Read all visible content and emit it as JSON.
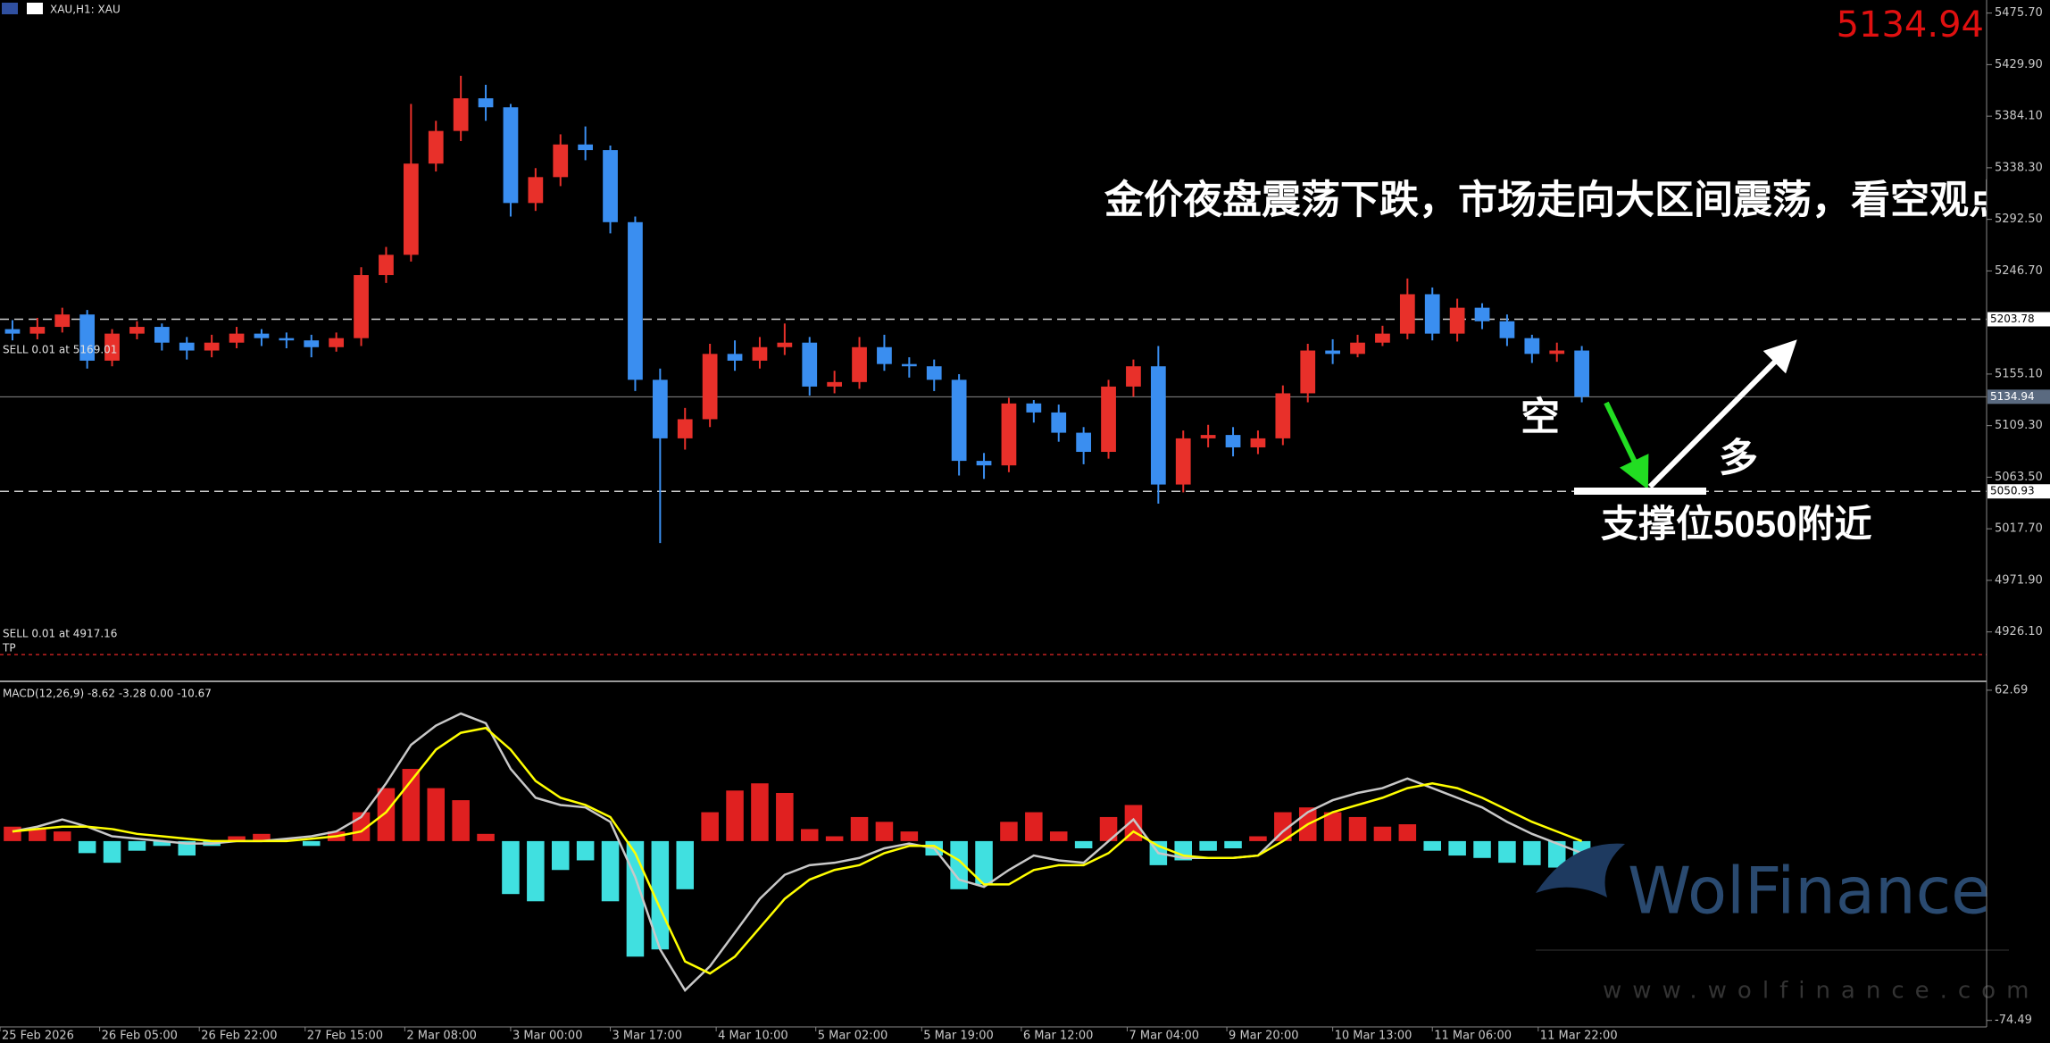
{
  "chart_data": [
    {
      "type": "candlestick",
      "title": "XAU,H1: XAU",
      "x": [
        2,
        6,
        10,
        14,
        18,
        22,
        26,
        30,
        34,
        38,
        42,
        46,
        50,
        54,
        58,
        62,
        66,
        70,
        74,
        78,
        82,
        86,
        90,
        94,
        98,
        102,
        106,
        110,
        114,
        118,
        122,
        126,
        130,
        134,
        138,
        142,
        146,
        150,
        154,
        158,
        162,
        166,
        170,
        174,
        178,
        182,
        186,
        190,
        194,
        198,
        202,
        206,
        210,
        214,
        218,
        222,
        226,
        230,
        234,
        238,
        242,
        246,
        250,
        254
      ],
      "open": [
        5195,
        5191,
        5197,
        5208,
        5167,
        5191,
        5197,
        5183,
        5176,
        5183,
        5191,
        5187,
        5185,
        5179,
        5187,
        5243,
        5261,
        5342,
        5371,
        5400,
        5392,
        5307,
        5330,
        5359,
        5354,
        5290,
        5150,
        5098,
        5115,
        5173,
        5167,
        5179,
        5183,
        5144,
        5148,
        5179,
        5164,
        5162,
        5150,
        5078,
        5074,
        5129,
        5121,
        5103,
        5086,
        5144,
        5162,
        5057,
        5098,
        5101,
        5090,
        5098,
        5138,
        5176,
        5173,
        5183,
        5191,
        5226,
        5191,
        5214,
        5202,
        5187,
        5173,
        5176
      ],
      "high": [
        5203,
        5205,
        5214,
        5212,
        5195,
        5202,
        5200,
        5188,
        5190,
        5197,
        5195,
        5192,
        5190,
        5192,
        5250,
        5268,
        5395,
        5380,
        5420,
        5412,
        5395,
        5338,
        5368,
        5375,
        5358,
        5295,
        5160,
        5125,
        5182,
        5185,
        5188,
        5200,
        5188,
        5158,
        5188,
        5190,
        5170,
        5168,
        5155,
        5085,
        5134,
        5132,
        5128,
        5108,
        5150,
        5168,
        5180,
        5105,
        5110,
        5108,
        5105,
        5145,
        5182,
        5186,
        5190,
        5198,
        5240,
        5232,
        5222,
        5218,
        5208,
        5190,
        5183,
        5180
      ],
      "low": [
        5185,
        5186,
        5192,
        5160,
        5162,
        5186,
        5176,
        5168,
        5170,
        5178,
        5180,
        5178,
        5170,
        5175,
        5180,
        5236,
        5255,
        5335,
        5362,
        5380,
        5295,
        5300,
        5322,
        5345,
        5280,
        5140,
        5005,
        5088,
        5108,
        5158,
        5160,
        5172,
        5136,
        5138,
        5142,
        5158,
        5152,
        5140,
        5065,
        5062,
        5068,
        5112,
        5095,
        5075,
        5080,
        5135,
        5040,
        5050,
        5090,
        5082,
        5084,
        5092,
        5130,
        5164,
        5170,
        5180,
        5186,
        5185,
        5184,
        5195,
        5180,
        5165,
        5166,
        5130
      ],
      "close": [
        5191,
        5197,
        5208,
        5167,
        5191,
        5197,
        5183,
        5176,
        5183,
        5191,
        5187,
        5185,
        5179,
        5187,
        5243,
        5261,
        5342,
        5371,
        5400,
        5392,
        5307,
        5330,
        5359,
        5354,
        5290,
        5150,
        5098,
        5115,
        5173,
        5167,
        5179,
        5183,
        5144,
        5148,
        5179,
        5164,
        5162,
        5150,
        5078,
        5074,
        5129,
        5121,
        5103,
        5086,
        5144,
        5162,
        5057,
        5098,
        5101,
        5090,
        5098,
        5138,
        5176,
        5173,
        5183,
        5191,
        5226,
        5191,
        5214,
        5202,
        5187,
        5173,
        5176,
        5135
      ],
      "up_color": "#e8302a",
      "down_color": "#3a8ef0",
      "xlim": [
        0,
        319
      ],
      "xticks": [
        {
          "value": 0,
          "label": "25 Feb 2026"
        },
        {
          "value": 16,
          "label": "26 Feb 05:00"
        },
        {
          "value": 32,
          "label": "26 Feb 22:00"
        },
        {
          "value": 49,
          "label": "27 Feb 15:00"
        },
        {
          "value": 65,
          "label": "2 Mar 08:00"
        },
        {
          "value": 82,
          "label": "3 Mar 00:00"
        },
        {
          "value": 98,
          "label": "3 Mar 17:00"
        },
        {
          "value": 115,
          "label": "4 Mar 10:00"
        },
        {
          "value": 131,
          "label": "5 Mar 02:00"
        },
        {
          "value": 148,
          "label": "5 Mar 19:00"
        },
        {
          "value": 164,
          "label": "6 Mar 12:00"
        },
        {
          "value": 181,
          "label": "7 Mar 04:00"
        },
        {
          "value": 197,
          "label": "9 Mar 20:00"
        },
        {
          "value": 214,
          "label": "10 Mar 13:00"
        },
        {
          "value": 230,
          "label": "11 Mar 06:00"
        },
        {
          "value": 247,
          "label": "11 Mar 22:00"
        }
      ],
      "ylim": [
        4883,
        5487.3
      ],
      "yticks": [
        {
          "value": 5475.7,
          "label": "5475.70"
        },
        {
          "value": 5429.9,
          "label": "5429.90"
        },
        {
          "value": 5384.1,
          "label": "5384.10"
        },
        {
          "value": 5338.3,
          "label": "5338.30"
        },
        {
          "value": 5292.5,
          "label": "5292.50"
        },
        {
          "value": 5246.7,
          "label": "5246.70"
        },
        {
          "value": 5155.1,
          "label": "5155.10"
        },
        {
          "value": 5109.3,
          "label": "5109.30"
        },
        {
          "value": 5063.5,
          "label": "5063.50"
        },
        {
          "value": 5017.7,
          "label": "5017.70"
        },
        {
          "value": 4971.9,
          "label": "4971.90"
        },
        {
          "value": 4926.1,
          "label": "4926.10"
        }
      ],
      "last_price": 5134.94,
      "levels": [
        5203.78,
        5050.93
      ],
      "tp_line": 4906,
      "tp_color": "#c02020",
      "orders": [
        "SELL 0.01 at 5169.01",
        "SELL 0.01 at 4917.16",
        "TP"
      ],
      "annotations": {
        "headline": "金价夜盘震荡下跌，市场走向大区间震荡，看空观点",
        "short": "空",
        "long": "多",
        "support": [
          "支撑位",
          "5050",
          "附近"
        ]
      }
    },
    {
      "type": "macd",
      "title": "MACD(12,26,9) -8.62 -3.28 0.00 -10.67",
      "histogram": [
        6,
        5,
        4,
        -5,
        -9,
        -4,
        -2,
        -6,
        -2,
        2,
        3,
        1,
        -2,
        4,
        12,
        22,
        30,
        22,
        17,
        3,
        -22,
        -25,
        -12,
        -8,
        -25,
        -48,
        -45,
        -20,
        12,
        21,
        24,
        20,
        5,
        2,
        10,
        8,
        4,
        -6,
        -20,
        -18,
        8,
        12,
        4,
        -3,
        10,
        15,
        -10,
        -8,
        -4,
        -3,
        2,
        12,
        14,
        12,
        10,
        6,
        7,
        -4,
        -6,
        -7,
        -9,
        -10,
        -11,
        -10
      ],
      "up_color": "#e02020",
      "down_color": "#40e0e0",
      "series": [
        {
          "color": "#c8c8c8",
          "values": [
            4,
            6,
            9,
            6,
            2,
            1,
            0,
            -1,
            -1,
            0,
            0,
            1,
            2,
            4,
            10,
            24,
            40,
            48,
            53,
            49,
            30,
            18,
            15,
            14,
            8,
            -15,
            -45,
            -62,
            -52,
            -38,
            -24,
            -14,
            -10,
            -9,
            -7,
            -3,
            -1,
            -3,
            -16,
            -19,
            -12,
            -6,
            -8,
            -9,
            0,
            9,
            -5,
            -7,
            -7,
            -7,
            -6,
            4,
            12,
            17,
            20,
            22,
            26,
            22,
            18,
            14,
            8,
            3,
            -1,
            -5
          ]
        },
        {
          "color": "#ffff00",
          "values": [
            4,
            5,
            6,
            6,
            5,
            3,
            2,
            1,
            0,
            0,
            0,
            0,
            1,
            2,
            4,
            12,
            25,
            38,
            45,
            47,
            38,
            25,
            18,
            15,
            10,
            -5,
            -28,
            -50,
            -55,
            -48,
            -36,
            -24,
            -16,
            -12,
            -10,
            -5,
            -2,
            -2,
            -8,
            -18,
            -18,
            -12,
            -10,
            -10,
            -5,
            4,
            -2,
            -6,
            -7,
            -7,
            -6,
            0,
            7,
            12,
            15,
            18,
            22,
            24,
            22,
            18,
            13,
            8,
            4,
            0
          ]
        }
      ],
      "ylim": [
        -77.2,
        66
      ],
      "yticks": [
        62.69,
        -74.49
      ]
    }
  ],
  "watermark": {
    "brand": "WolFinance",
    "url": "www.wolfinance.com"
  }
}
